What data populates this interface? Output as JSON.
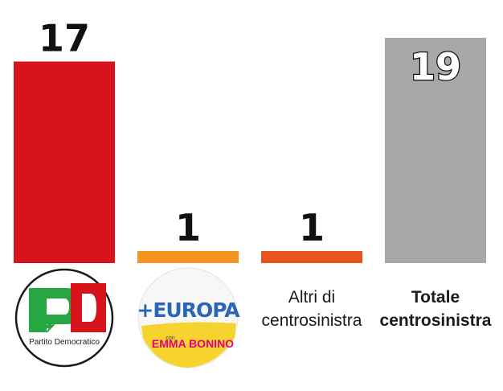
{
  "chart_data": {
    "type": "bar",
    "title": "",
    "xlabel": "",
    "ylabel": "",
    "ylim": [
      0,
      19
    ],
    "grid": false,
    "categories": [
      "Partito Democratico",
      "+Europa",
      "Altri di centrosinistra",
      "Totale centrosinistra"
    ],
    "values": [
      17,
      1,
      1,
      19
    ],
    "bar_colors": [
      "#d7131c",
      "#f39422",
      "#e8531f",
      "#a8a8a8"
    ],
    "value_label_style": [
      "dark",
      "dark",
      "dark",
      "outlined-white"
    ]
  },
  "logos": {
    "pd": {
      "wordmark": "PD",
      "caption": "Partito Democratico"
    },
    "europa": {
      "wordmark": "+EUROPA",
      "tagline": "con",
      "leader": "EMMA BONINO"
    }
  },
  "labels": {
    "altri": [
      "Altri di",
      "centrosinistra"
    ],
    "totale": [
      "Totale",
      "centrosinistra"
    ]
  },
  "colors": {
    "pd_red": "#d7131c",
    "pd_green": "#27a641",
    "europa_yellow": "#f7d32f",
    "europa_blue": "#2a66b6",
    "value_text": "#111111"
  }
}
